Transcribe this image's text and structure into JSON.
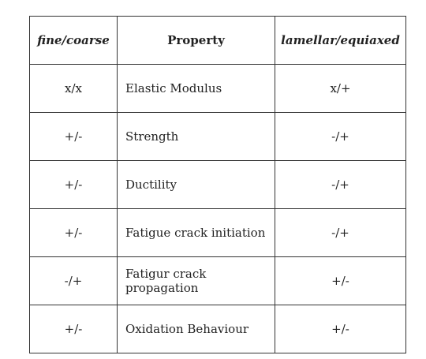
{
  "table": {
    "headers": [
      "fine/coarse",
      "Property",
      "lamellar/equiaxed"
    ],
    "rows": [
      [
        "x/x",
        "Elastic Modulus",
        "x/+"
      ],
      [
        "+/-",
        "Strength",
        "-/+"
      ],
      [
        "+/-",
        "Ductility",
        "-/+"
      ],
      [
        "+/-",
        "Fatigue crack initiation",
        "-/+"
      ],
      [
        "-/+",
        "Fatigur crack propagation",
        "+/-"
      ],
      [
        "+/-",
        "Oxidation Behaviour",
        "+/-"
      ]
    ]
  }
}
